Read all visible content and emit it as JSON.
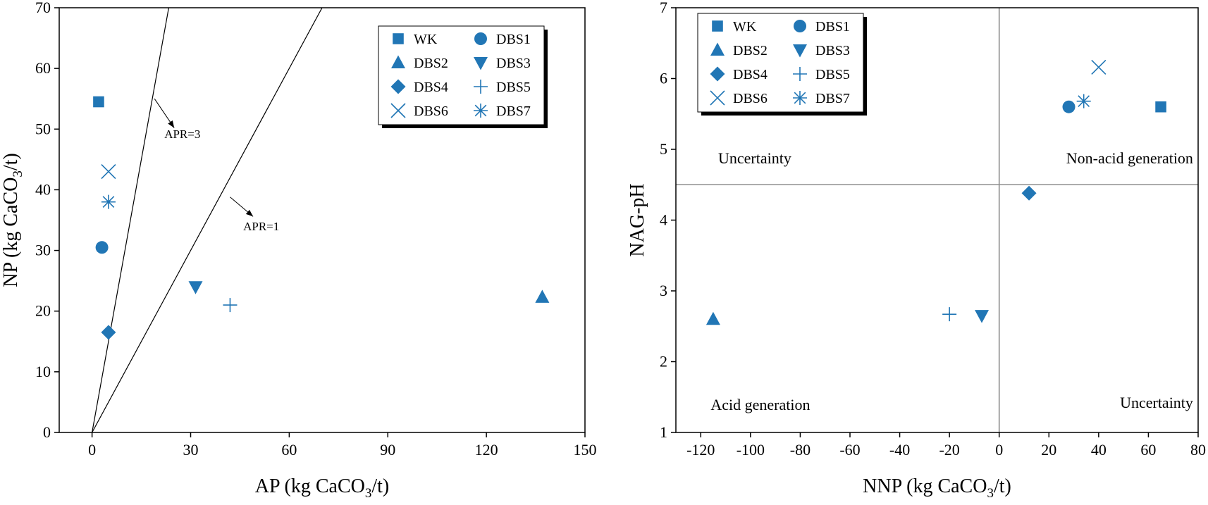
{
  "colors": {
    "marker": "#2176b5",
    "axis": "#000000",
    "refline": "#8c8c8c",
    "legend_shadow": "#000000"
  },
  "chart_data": [
    {
      "type": "scatter",
      "title": "",
      "xlabel": {
        "pre": "AP (kg CaCO",
        "sub": "3",
        "post": "/t)"
      },
      "ylabel": {
        "pre": "NP (kg CaCO",
        "sub": "3",
        "post": "/t)"
      },
      "xlim": [
        -10,
        150
      ],
      "ylim": [
        0,
        70
      ],
      "xticks": [
        0,
        30,
        60,
        90,
        120,
        150
      ],
      "yticks": [
        0,
        10,
        20,
        30,
        40,
        50,
        60,
        70
      ],
      "grid": false,
      "legend_position": "top-right",
      "series": [
        {
          "name": "WK",
          "marker": "square",
          "x": 2,
          "y": 54.5
        },
        {
          "name": "DBS1",
          "marker": "circle",
          "x": 3,
          "y": 30.5
        },
        {
          "name": "DBS2",
          "marker": "triangle-up",
          "x": 137,
          "y": 22.3
        },
        {
          "name": "DBS3",
          "marker": "triangle-down",
          "x": 31.5,
          "y": 24
        },
        {
          "name": "DBS4",
          "marker": "diamond",
          "x": 5,
          "y": 16.5
        },
        {
          "name": "DBS5",
          "marker": "plus",
          "x": 42,
          "y": 21
        },
        {
          "name": "DBS6",
          "marker": "x",
          "x": 5,
          "y": 43
        },
        {
          "name": "DBS7",
          "marker": "asterisk",
          "x": 5,
          "y": 38
        }
      ],
      "reference_lines": [
        {
          "label": "APR=3",
          "slope": 3
        },
        {
          "label": "APR=1",
          "slope": 1
        }
      ],
      "annotations": [
        {
          "text": "APR=3",
          "x": 22,
          "y": 48.5,
          "arrow_from": [
            19,
            55
          ],
          "arrow_to": [
            25,
            50.2
          ]
        },
        {
          "text": "APR=1",
          "x": 46,
          "y": 33.3,
          "arrow_from": [
            42,
            38.8
          ],
          "arrow_to": [
            49,
            35.6
          ]
        }
      ]
    },
    {
      "type": "scatter",
      "title": "",
      "xlabel": {
        "pre": "NNP (kg CaCO",
        "sub": "3",
        "post": "/t)"
      },
      "ylabel": {
        "pre": "NAG-pH",
        "sub": "",
        "post": ""
      },
      "xlim": [
        -130,
        80
      ],
      "ylim": [
        1,
        7
      ],
      "xticks": [
        -120,
        -100,
        -80,
        -60,
        -40,
        -20,
        0,
        20,
        40,
        60,
        80
      ],
      "yticks": [
        1,
        2,
        3,
        4,
        5,
        6,
        7
      ],
      "grid": false,
      "legend_position": "top-left",
      "series": [
        {
          "name": "WK",
          "marker": "square",
          "x": 65,
          "y": 5.6
        },
        {
          "name": "DBS1",
          "marker": "circle",
          "x": 28,
          "y": 5.6
        },
        {
          "name": "DBS2",
          "marker": "triangle-up",
          "x": -115,
          "y": 2.6
        },
        {
          "name": "DBS3",
          "marker": "triangle-down",
          "x": -7,
          "y": 2.65
        },
        {
          "name": "DBS4",
          "marker": "diamond",
          "x": 12,
          "y": 4.38
        },
        {
          "name": "DBS5",
          "marker": "plus",
          "x": -20,
          "y": 2.67
        },
        {
          "name": "DBS6",
          "marker": "x",
          "x": 40,
          "y": 6.16
        },
        {
          "name": "DBS7",
          "marker": "asterisk",
          "x": 34,
          "y": 5.68
        }
      ],
      "reference_lines": [
        {
          "orientation": "horizontal",
          "value": 4.5
        },
        {
          "orientation": "vertical",
          "value": 0
        }
      ],
      "region_labels": [
        {
          "text": "Uncertainty",
          "x": -113,
          "y": 4.8,
          "anchor": "start"
        },
        {
          "text": "Non-acid generation",
          "x": 78,
          "y": 4.8,
          "anchor": "end"
        },
        {
          "text": "Acid generation",
          "x": -116,
          "y": 1.32,
          "anchor": "start"
        },
        {
          "text": "Uncertainty",
          "x": 78,
          "y": 1.35,
          "anchor": "end"
        }
      ]
    }
  ]
}
